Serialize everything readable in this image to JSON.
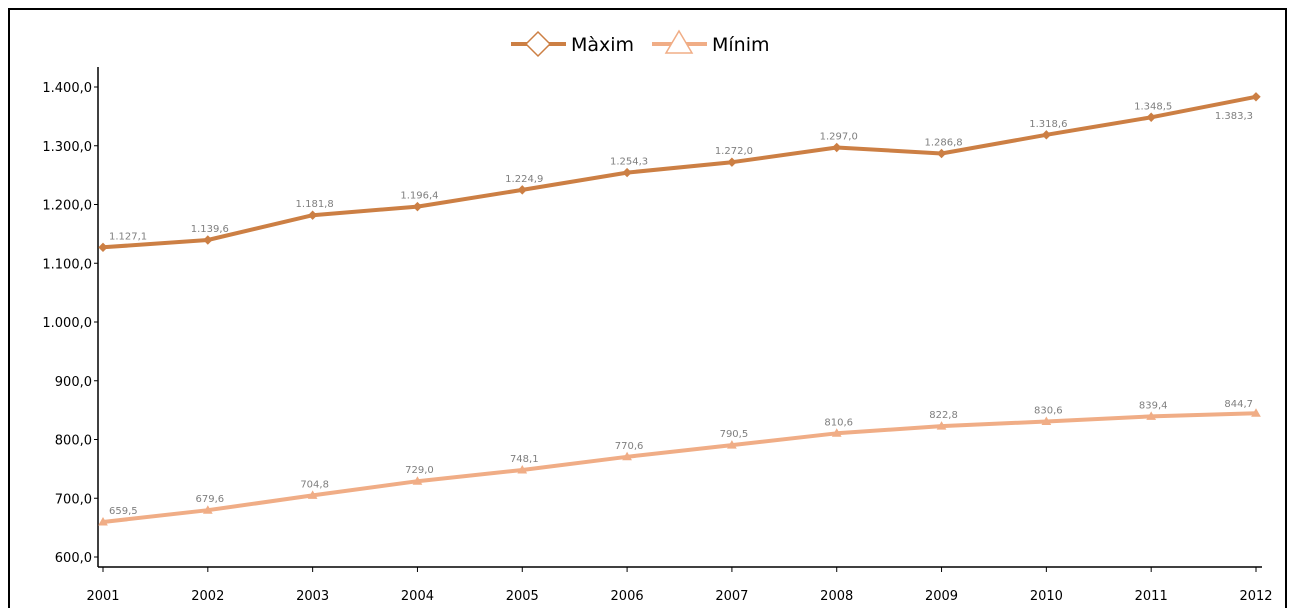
{
  "chart_data": {
    "type": "line",
    "x": [
      "2001",
      "2002",
      "2003",
      "2004",
      "2005",
      "2006",
      "2007",
      "2008",
      "2009",
      "2010",
      "2011",
      "2012"
    ],
    "series": [
      {
        "name": "Màxim",
        "color": "#cc7f44",
        "marker": "diamond",
        "values": [
          1127.1,
          1139.6,
          1181.8,
          1196.4,
          1224.9,
          1254.3,
          1272.0,
          1297.0,
          1286.8,
          1318.6,
          1348.5,
          1383.3
        ],
        "labels": [
          "1.127,1",
          "1.139,6",
          "1.181,8",
          "1.196,4",
          "1.224,9",
          "1.254,3",
          "1.272,0",
          "1.297,0",
          "1.286,8",
          "1.318,6",
          "1.348,5",
          "1.383,3"
        ]
      },
      {
        "name": "Mínim",
        "color": "#f0ad86",
        "marker": "triangle",
        "values": [
          659.5,
          679.6,
          704.8,
          729.0,
          748.1,
          770.6,
          790.5,
          810.6,
          822.8,
          830.6,
          839.4,
          844.7
        ],
        "labels": [
          "659,5",
          "679,6",
          "704,8",
          "729,0",
          "748,1",
          "770,6",
          "790,5",
          "810,6",
          "822,8",
          "830,6",
          "839,4",
          "844,7"
        ]
      }
    ],
    "yticks": [
      600,
      700,
      800,
      900,
      1000,
      1100,
      1200,
      1300,
      1400
    ],
    "ytick_labels": [
      "600,0",
      "700,0",
      "800,0",
      "900,0",
      "1.000,0",
      "1.100,0",
      "1.200,0",
      "1.300,0",
      "1.400,0"
    ],
    "ylim": [
      600,
      1400
    ],
    "title": "",
    "xlabel": "",
    "ylabel": "",
    "grid": false,
    "legend_position": "top-center"
  }
}
